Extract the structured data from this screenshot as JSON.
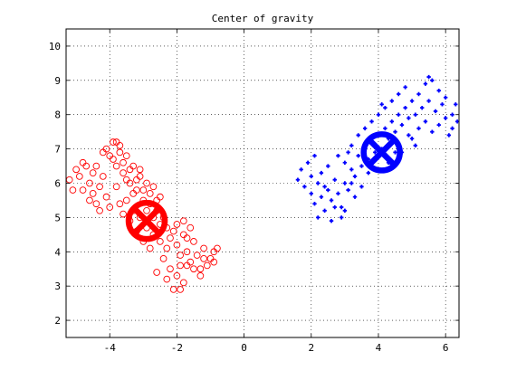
{
  "chart_data": {
    "type": "scatter",
    "title": "Center of gravity",
    "xlabel": "",
    "ylabel": "",
    "xlim": [
      -5.3,
      6.4
    ],
    "ylim": [
      1.5,
      10.5
    ],
    "xticks": [
      -4,
      -2,
      0,
      2,
      4,
      6
    ],
    "yticks": [
      2,
      3,
      4,
      5,
      6,
      7,
      8,
      9,
      10
    ],
    "grid": true,
    "grid_style": "dotted",
    "series": [
      {
        "marker": "circle-open",
        "color": "#ff0000",
        "center": [
          -2.9,
          4.9
        ],
        "points": [
          [
            -5.2,
            6.1
          ],
          [
            -5.0,
            6.4
          ],
          [
            -4.9,
            6.2
          ],
          [
            -4.8,
            5.8
          ],
          [
            -4.7,
            6.5
          ],
          [
            -4.6,
            6.0
          ],
          [
            -4.5,
            5.7
          ],
          [
            -4.5,
            6.3
          ],
          [
            -4.4,
            5.4
          ],
          [
            -4.3,
            5.9
          ],
          [
            -4.2,
            6.2
          ],
          [
            -4.1,
            5.6
          ],
          [
            -4.0,
            6.8
          ],
          [
            -3.9,
            7.2
          ],
          [
            -3.8,
            6.5
          ],
          [
            -3.7,
            7.1
          ],
          [
            -3.6,
            6.3
          ],
          [
            -3.5,
            6.8
          ],
          [
            -3.4,
            6.0
          ],
          [
            -3.3,
            6.5
          ],
          [
            -3.2,
            5.8
          ],
          [
            -3.1,
            6.2
          ],
          [
            -3.0,
            5.5
          ],
          [
            -2.9,
            6.0
          ],
          [
            -2.8,
            5.4
          ],
          [
            -2.7,
            5.9
          ],
          [
            -2.6,
            5.2
          ],
          [
            -2.5,
            5.6
          ],
          [
            -2.4,
            5.0
          ],
          [
            -2.3,
            4.7
          ],
          [
            -4.1,
            7.0
          ],
          [
            -3.9,
            6.7
          ],
          [
            -3.6,
            6.6
          ],
          [
            -3.4,
            6.4
          ],
          [
            -3.2,
            6.1
          ],
          [
            -3.0,
            5.8
          ],
          [
            -2.8,
            5.7
          ],
          [
            -2.6,
            5.5
          ],
          [
            -3.8,
            5.9
          ],
          [
            -3.5,
            5.5
          ],
          [
            -3.3,
            5.2
          ],
          [
            -3.1,
            5.0
          ],
          [
            -2.9,
            4.7
          ],
          [
            -2.7,
            4.5
          ],
          [
            -2.5,
            4.3
          ],
          [
            -2.3,
            4.1
          ],
          [
            -2.1,
            4.6
          ],
          [
            -2.0,
            4.2
          ],
          [
            -1.9,
            3.9
          ],
          [
            -1.8,
            4.5
          ],
          [
            -1.7,
            4.0
          ],
          [
            -1.6,
            3.7
          ],
          [
            -1.5,
            4.3
          ],
          [
            -1.4,
            3.9
          ],
          [
            -1.3,
            3.5
          ],
          [
            -1.2,
            4.1
          ],
          [
            -1.1,
            3.6
          ],
          [
            -1.0,
            3.8
          ],
          [
            -0.9,
            4.0
          ],
          [
            -0.8,
            4.1
          ],
          [
            -1.6,
            4.7
          ],
          [
            -1.8,
            4.9
          ],
          [
            -2.0,
            3.3
          ],
          [
            -1.9,
            2.9
          ],
          [
            -1.8,
            3.1
          ],
          [
            -2.2,
            3.5
          ],
          [
            -2.4,
            3.8
          ],
          [
            -2.6,
            3.4
          ],
          [
            -3.0,
            4.3
          ],
          [
            -3.2,
            4.6
          ],
          [
            -3.4,
            4.9
          ],
          [
            -3.6,
            5.1
          ],
          [
            -3.7,
            5.4
          ],
          [
            -4.0,
            5.3
          ],
          [
            -4.3,
            5.2
          ],
          [
            -4.6,
            5.5
          ],
          [
            -5.1,
            5.8
          ],
          [
            -4.8,
            6.6
          ],
          [
            -4.4,
            6.5
          ],
          [
            -4.2,
            6.9
          ],
          [
            -3.8,
            7.2
          ],
          [
            -3.7,
            6.9
          ],
          [
            -3.1,
            6.4
          ],
          [
            -2.9,
            5.2
          ],
          [
            -2.7,
            5.0
          ],
          [
            -2.5,
            4.8
          ],
          [
            -2.2,
            4.4
          ],
          [
            -2.0,
            4.8
          ],
          [
            -1.7,
            4.4
          ],
          [
            -1.5,
            3.5
          ],
          [
            -1.3,
            3.3
          ],
          [
            -1.2,
            3.8
          ],
          [
            -0.9,
            3.7
          ],
          [
            -2.3,
            3.2
          ],
          [
            -2.1,
            2.9
          ],
          [
            -1.9,
            3.6
          ],
          [
            -1.7,
            3.6
          ],
          [
            -2.8,
            4.1
          ],
          [
            -3.3,
            5.7
          ],
          [
            -3.5,
            6.1
          ]
        ]
      },
      {
        "marker": "plus",
        "color": "#0000ff",
        "center": [
          4.1,
          6.9
        ],
        "points": [
          [
            1.6,
            6.1
          ],
          [
            1.7,
            6.4
          ],
          [
            1.8,
            5.9
          ],
          [
            1.9,
            6.6
          ],
          [
            2.0,
            6.2
          ],
          [
            2.0,
            5.7
          ],
          [
            2.1,
            5.4
          ],
          [
            2.2,
            6.0
          ],
          [
            2.3,
            5.6
          ],
          [
            2.3,
            6.3
          ],
          [
            2.4,
            5.2
          ],
          [
            2.5,
            5.8
          ],
          [
            2.5,
            6.5
          ],
          [
            2.6,
            5.5
          ],
          [
            2.7,
            6.1
          ],
          [
            2.8,
            5.7
          ],
          [
            2.8,
            6.8
          ],
          [
            2.9,
            5.3
          ],
          [
            3.0,
            6.0
          ],
          [
            3.0,
            6.6
          ],
          [
            3.1,
            5.8
          ],
          [
            3.2,
            6.4
          ],
          [
            3.2,
            7.1
          ],
          [
            3.3,
            6.2
          ],
          [
            3.4,
            6.8
          ],
          [
            3.4,
            7.4
          ],
          [
            3.5,
            6.5
          ],
          [
            3.6,
            7.0
          ],
          [
            3.6,
            7.6
          ],
          [
            3.7,
            6.7
          ],
          [
            3.8,
            7.2
          ],
          [
            3.8,
            7.8
          ],
          [
            3.9,
            6.9
          ],
          [
            4.0,
            7.4
          ],
          [
            4.0,
            8.0
          ],
          [
            4.1,
            7.0
          ],
          [
            4.2,
            7.6
          ],
          [
            4.2,
            8.2
          ],
          [
            4.3,
            7.3
          ],
          [
            4.4,
            7.8
          ],
          [
            4.4,
            8.4
          ],
          [
            4.5,
            7.5
          ],
          [
            4.6,
            8.0
          ],
          [
            4.6,
            8.6
          ],
          [
            4.7,
            7.7
          ],
          [
            4.8,
            8.2
          ],
          [
            4.8,
            8.8
          ],
          [
            4.9,
            7.9
          ],
          [
            5.0,
            8.4
          ],
          [
            5.0,
            7.3
          ],
          [
            5.1,
            8.0
          ],
          [
            5.2,
            8.6
          ],
          [
            5.2,
            7.6
          ],
          [
            5.3,
            8.2
          ],
          [
            5.4,
            8.9
          ],
          [
            5.4,
            7.8
          ],
          [
            5.5,
            8.4
          ],
          [
            5.6,
            9.0
          ],
          [
            5.6,
            7.5
          ],
          [
            5.7,
            8.1
          ],
          [
            5.8,
            8.7
          ],
          [
            5.8,
            7.7
          ],
          [
            5.9,
            8.3
          ],
          [
            6.0,
            7.9
          ],
          [
            6.0,
            8.5
          ],
          [
            6.1,
            7.4
          ],
          [
            6.2,
            8.0
          ],
          [
            6.2,
            7.6
          ],
          [
            6.3,
            8.3
          ],
          [
            6.35,
            7.8
          ],
          [
            2.2,
            5.0
          ],
          [
            2.6,
            4.9
          ],
          [
            3.0,
            5.2
          ],
          [
            3.3,
            5.6
          ],
          [
            3.5,
            5.9
          ],
          [
            2.9,
            5.0
          ],
          [
            2.4,
            5.9
          ],
          [
            2.1,
            6.8
          ],
          [
            3.1,
            6.9
          ],
          [
            3.7,
            6.3
          ],
          [
            4.3,
            6.6
          ],
          [
            4.7,
            6.9
          ],
          [
            5.1,
            7.1
          ],
          [
            4.9,
            7.4
          ],
          [
            4.5,
            6.9
          ],
          [
            3.9,
            6.4
          ],
          [
            3.2,
            6.0
          ],
          [
            2.7,
            5.3
          ],
          [
            4.1,
            8.3
          ],
          [
            5.5,
            9.1
          ]
        ]
      }
    ]
  }
}
